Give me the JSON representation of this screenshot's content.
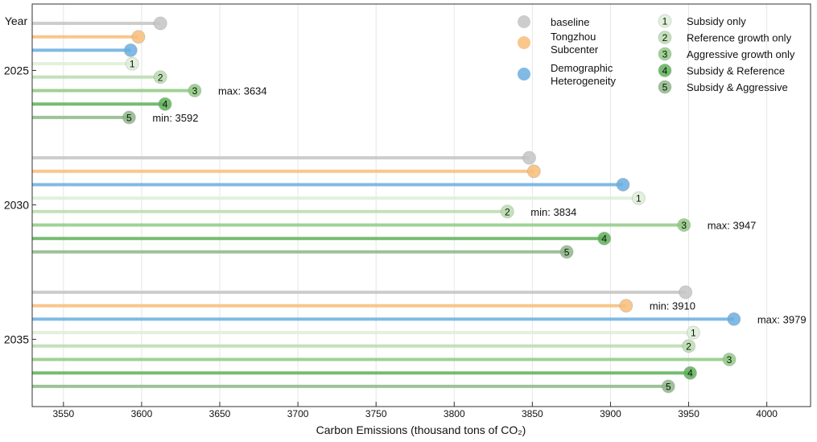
{
  "chart_data": {
    "type": "lollipop",
    "xlabel": "Carbon Emissions (thousand tons of CO₂)",
    "ylabel": "Year",
    "xlim": [
      3530,
      4028
    ],
    "xticks": [
      3550,
      3600,
      3650,
      3700,
      3750,
      3800,
      3850,
      3900,
      3950,
      4000
    ],
    "grid": "vertical",
    "legend_placement": "top-right",
    "series": [
      {
        "name": "baseline",
        "marker": "",
        "color": "#c4c4c4"
      },
      {
        "name": "Tongzhou Subcenter",
        "name_lines": [
          "Tongzhou",
          "Subcenter"
        ],
        "marker": "",
        "color": "#f8bd78"
      },
      {
        "name": "Demographic Heterogeneity",
        "name_lines": [
          "Demographic",
          "Heterogeneity"
        ],
        "marker": "",
        "color": "#6aaee0"
      },
      {
        "name": "Subsidy only",
        "marker": "1",
        "color": "#ddeed6"
      },
      {
        "name": "Reference growth only",
        "marker": "2",
        "color": "#b9dcae"
      },
      {
        "name": "Aggressive growth only",
        "marker": "3",
        "color": "#8fca82"
      },
      {
        "name": "Subsidy & Reference",
        "marker": "4",
        "color": "#5db257"
      },
      {
        "name": "Subsidy & Aggressive",
        "marker": "5",
        "color": "#8cb786"
      }
    ],
    "groups": [
      {
        "year": "2025",
        "values": [
          3612,
          3598,
          3593,
          3594,
          3612,
          3634,
          3615,
          3592
        ],
        "annotations": [
          {
            "series": 5,
            "text": "max: 3634"
          },
          {
            "series": 7,
            "text": "min: 3592"
          }
        ]
      },
      {
        "year": "2030",
        "values": [
          3848,
          3851,
          3908,
          3918,
          3834,
          3947,
          3896,
          3872
        ],
        "annotations": [
          {
            "series": 4,
            "text": "min: 3834"
          },
          {
            "series": 5,
            "text": "max: 3947"
          }
        ]
      },
      {
        "year": "2035",
        "values": [
          3948,
          3910,
          3979,
          3953,
          3950,
          3976,
          3951,
          3937
        ],
        "annotations": [
          {
            "series": 1,
            "text": "min: 3910"
          },
          {
            "series": 2,
            "text": "max: 3979"
          }
        ]
      }
    ]
  }
}
